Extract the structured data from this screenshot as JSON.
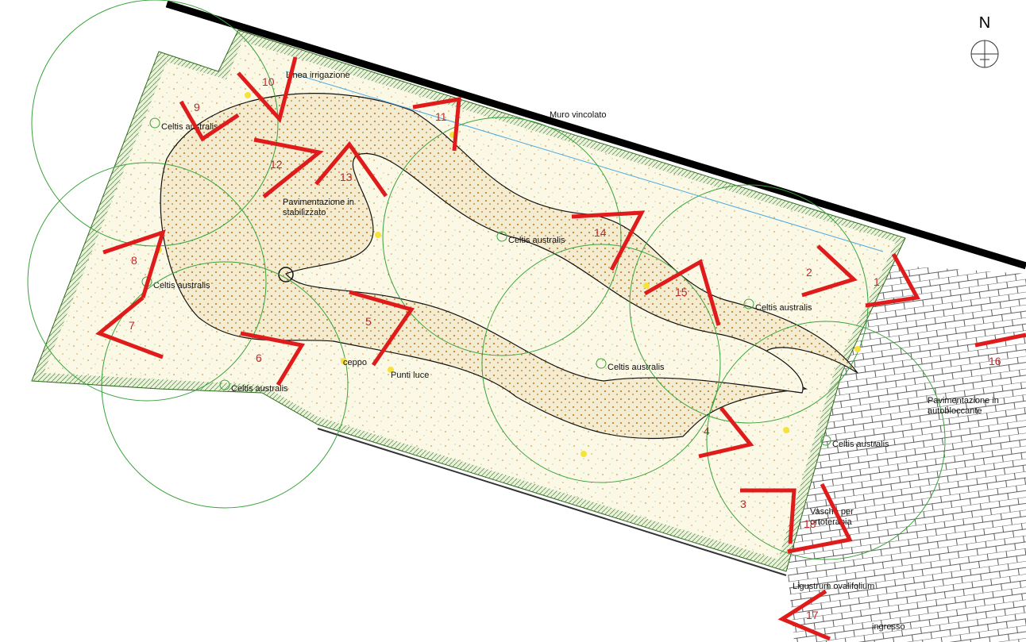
{
  "compass": "N",
  "labels": {
    "irrigation": "Linea irrigazione",
    "wall": "Muro vincolato",
    "paving": "Pavimentazione in stabilizzato",
    "stump": "ceppo",
    "lights": "Punti luce",
    "block_paving": "Pavimentazione in autobloccante",
    "beds": "Vasche per ortoterapia",
    "hedge": "Ligustrum ovalifolium",
    "entrance": "ingresso"
  },
  "trees": [
    "Celtis australis",
    "Celtis australis",
    "Celtis australis",
    "Celtis australis",
    "Celtis australis",
    "Celtis australis",
    "Celtis australis"
  ],
  "viewpoints": [
    "1",
    "2",
    "3",
    "4",
    "5",
    "6",
    "7",
    "8",
    "9",
    "10",
    "11",
    "12",
    "13",
    "14",
    "15",
    "16",
    "17",
    "18"
  ]
}
